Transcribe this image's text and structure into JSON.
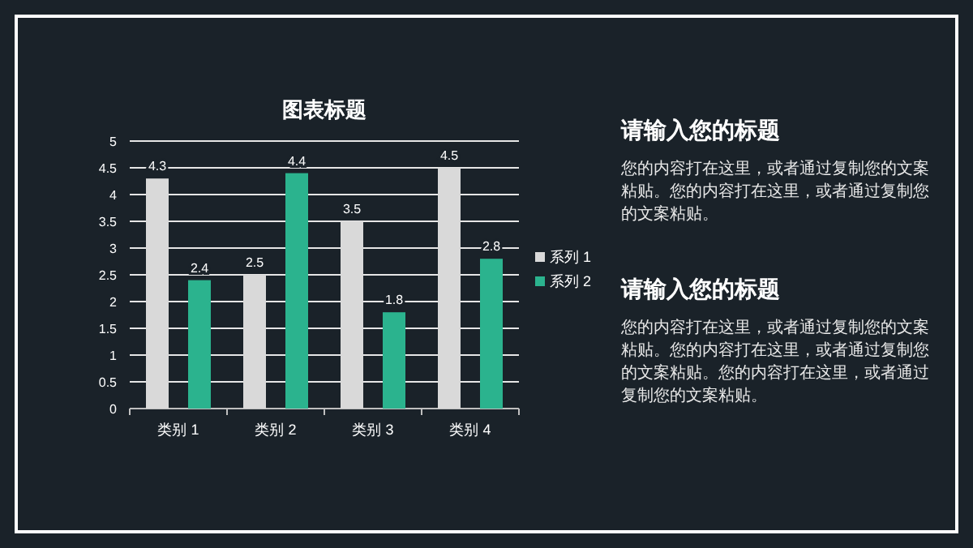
{
  "chart_data": [
    {
      "type": "bar",
      "title": "图表标题",
      "categories": [
        "类别 1",
        "类别 2",
        "类别 3",
        "类别 4"
      ],
      "series": [
        {
          "name": "系列 1",
          "color": "#d9d9d9",
          "values": [
            4.3,
            2.5,
            3.5,
            4.5
          ]
        },
        {
          "name": "系列 2",
          "color": "#2bb38e",
          "values": [
            2.4,
            4.4,
            1.8,
            2.8
          ]
        }
      ],
      "ylim": [
        0,
        5
      ],
      "yticks": [
        0,
        0.5,
        1,
        1.5,
        2,
        2.5,
        3,
        3.5,
        4,
        4.5,
        5
      ],
      "grid": "y",
      "legend": "right",
      "data_labels": true
    },
    {
      "type": "other",
      "annotations": [
        "请输入您的标题",
        "您的内容打在这里，或者通过复制您的文案粘贴。您的内容打在这里，或者通过复制您的文案粘贴。",
        "请输入您的标题",
        "您的内容打在这里，或者通过复制您的文案粘贴。您的内容打在这里，或者通过复制您的文案粘贴。您的内容打在这里，或者通过复制您的文案粘贴。"
      ]
    }
  ]
}
